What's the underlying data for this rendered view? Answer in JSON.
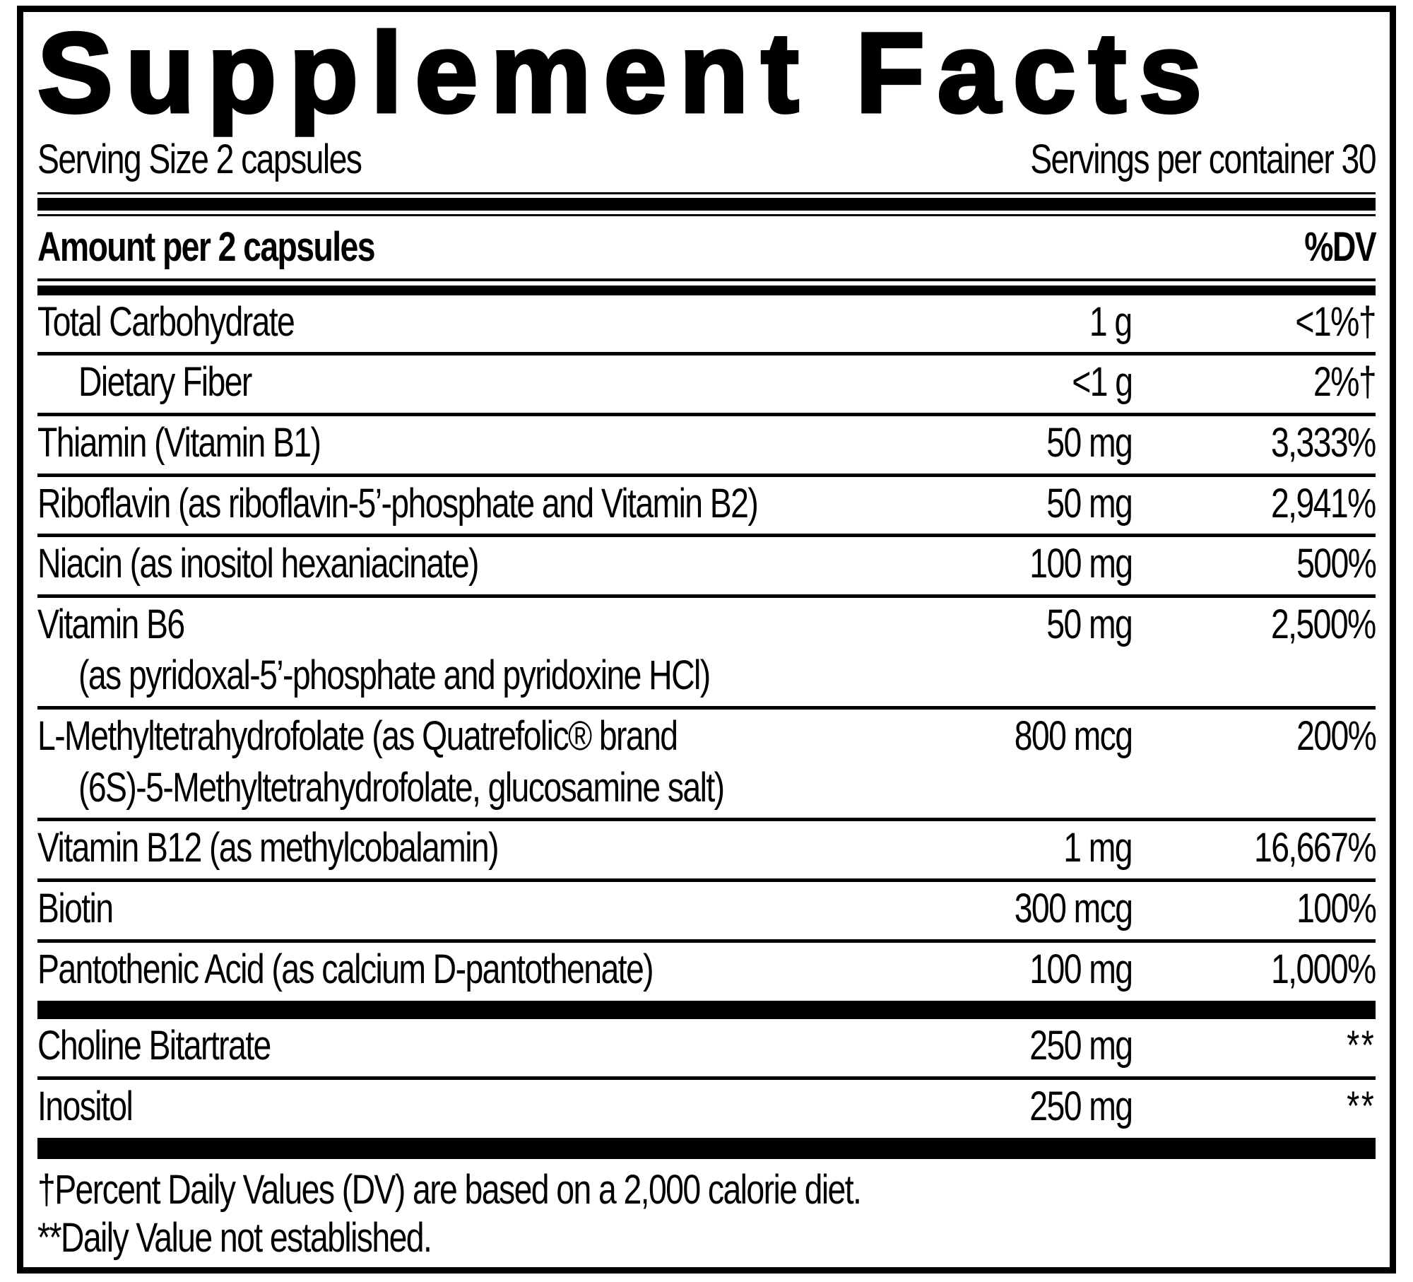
{
  "title": "Supplement Facts",
  "serving": {
    "size": "Serving Size 2 capsules",
    "per_container": "Servings per container 30"
  },
  "table": {
    "header": {
      "amount_label": "Amount per 2 capsules",
      "dv_label": "%DV"
    },
    "rows": [
      {
        "name": "Total Carbohydrate",
        "amount": "1 g",
        "dv": "<1%†"
      },
      {
        "name": "Dietary Fiber",
        "amount": "<1 g",
        "dv": "2%†"
      },
      {
        "name": "Thiamin (Vitamin B1)",
        "amount": "50 mg",
        "dv": "3,333%"
      },
      {
        "name": "Riboflavin (as riboflavin-5’-phosphate and Vitamin B2)",
        "amount": "50 mg",
        "dv": "2,941%"
      },
      {
        "name": "Niacin (as inositol hexaniacinate)",
        "amount": "100 mg",
        "dv": "500%"
      },
      {
        "name": "Vitamin B6",
        "name2": "(as pyridoxal-5’-phosphate and pyridoxine HCl)",
        "amount": "50 mg",
        "dv": "2,500%"
      },
      {
        "name": "L-Methyltetrahydrofolate (as Quatrefolic® brand",
        "name2": "(6S)-5-Methyltetrahydrofolate, glucosamine salt)",
        "amount": "800 mcg",
        "dv": "200%"
      },
      {
        "name": "Vitamin B12 (as methylcobalamin)",
        "amount": "1 mg",
        "dv": "16,667%"
      },
      {
        "name": "Biotin",
        "amount": "300 mcg",
        "dv": "100%"
      },
      {
        "name": "Pantothenic Acid (as calcium D-pantothenate)",
        "amount": "100 mg",
        "dv": "1,000%"
      }
    ],
    "rows2": [
      {
        "name": "Choline Bitartrate",
        "amount": "250 mg",
        "dv": "**"
      },
      {
        "name": "Inositol",
        "amount": "250 mg",
        "dv": "**"
      }
    ]
  },
  "footnotes": [
    "†Percent Daily Values (DV) are based on a 2,000 calorie diet.",
    "**Daily Value not established."
  ],
  "colors": {
    "ink": "#000000",
    "background": "#ffffff"
  }
}
